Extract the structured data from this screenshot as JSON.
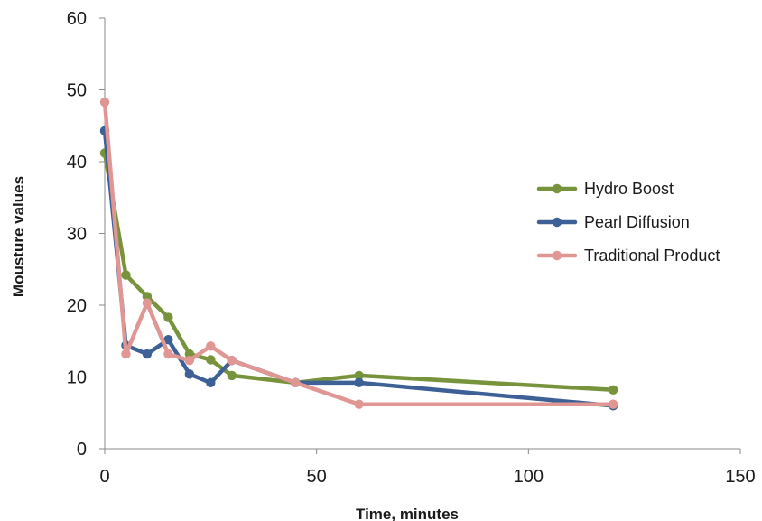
{
  "chart_data": {
    "type": "line",
    "title": "",
    "xlabel": "Time, minutes",
    "ylabel": "Mousture values",
    "xlim": [
      0,
      150
    ],
    "ylim": [
      0,
      60
    ],
    "x_ticks": [
      "0",
      "50",
      "100",
      "150"
    ],
    "y_ticks": [
      "0",
      "10",
      "20",
      "30",
      "40",
      "50",
      "60"
    ],
    "grid": false,
    "legend_position": "right",
    "series": [
      {
        "name": "Hydro Boost",
        "color": "#77933c",
        "x": [
          0,
          5,
          10,
          15,
          20,
          25,
          30,
          45,
          60,
          120
        ],
        "y": [
          41.2,
          24.2,
          21.2,
          18.3,
          13.2,
          12.4,
          10.2,
          9.2,
          10.2,
          8.2
        ]
      },
      {
        "name": "Pearl Diffusion",
        "color": "#3d6196",
        "x": [
          0,
          5,
          10,
          15,
          20,
          25,
          30,
          45,
          60,
          120
        ],
        "y": [
          44.3,
          14.4,
          13.2,
          15.2,
          10.4,
          9.2,
          12.3,
          9.2,
          9.2,
          6.0
        ]
      },
      {
        "name": "Traditional Product",
        "color": "#e09693",
        "x": [
          0,
          5,
          10,
          15,
          20,
          25,
          30,
          45,
          60,
          120
        ],
        "y": [
          48.3,
          13.2,
          20.3,
          13.2,
          12.3,
          14.3,
          12.3,
          9.2,
          6.2,
          6.2
        ]
      }
    ]
  }
}
